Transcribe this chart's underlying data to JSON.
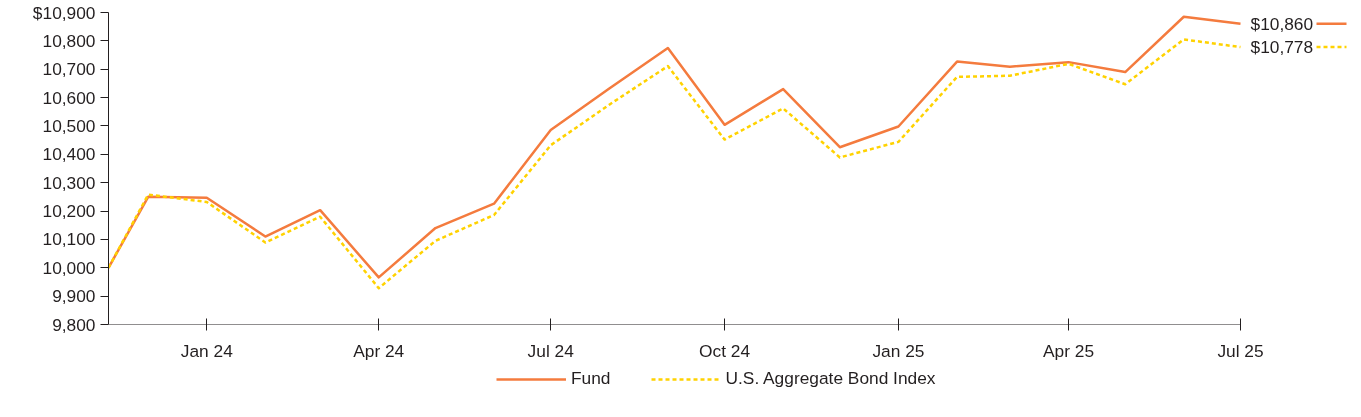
{
  "chart_data": {
    "type": "line",
    "x": [
      "2023-11-10",
      "2023-12-01",
      "2024-01-01",
      "2024-02-01",
      "2024-03-01",
      "2024-04-01",
      "2024-05-01",
      "2024-06-01",
      "2024-07-01",
      "2024-08-01",
      "2024-09-01",
      "2024-10-01",
      "2024-11-01",
      "2024-12-01",
      "2025-01-01",
      "2025-02-01",
      "2025-03-01",
      "2025-04-01",
      "2025-05-01",
      "2025-06-01",
      "2025-07-01"
    ],
    "series": [
      {
        "name": "Fund",
        "color": "#f47b3e",
        "line_style": "solid",
        "values": [
          10000,
          10250,
          10247,
          10110,
          10203,
          9966,
          10140,
          10226,
          10486,
          10632,
          10775,
          10504,
          10630,
          10425,
          10498,
          10727,
          10709,
          10725,
          10690,
          10885,
          10860
        ]
      },
      {
        "name": "U.S. Aggregate Bond Index",
        "color": "#ffd200",
        "line_style": "dashed",
        "values": [
          10000,
          10258,
          10232,
          10089,
          10180,
          9928,
          10095,
          10186,
          10432,
          10575,
          10711,
          10452,
          10562,
          10389,
          10444,
          10673,
          10677,
          10719,
          10647,
          10805,
          10778
        ]
      }
    ],
    "xlim": [
      "2023-11-10",
      "2025-07-01"
    ],
    "xticks": [
      {
        "value": "2024-01-01",
        "label": "Jan 24"
      },
      {
        "value": "2024-04-01",
        "label": "Apr 24"
      },
      {
        "value": "2024-07-01",
        "label": "Jul 24"
      },
      {
        "value": "2024-10-01",
        "label": "Oct 24"
      },
      {
        "value": "2025-01-01",
        "label": "Jan 25"
      },
      {
        "value": "2025-04-01",
        "label": "Apr 25"
      },
      {
        "value": "2025-07-01",
        "label": "Jul 25"
      }
    ],
    "ylim": [
      9800,
      10900
    ],
    "yticks": [
      {
        "value": 10900,
        "label": "$10,900"
      },
      {
        "value": 10800,
        "label": "10,800"
      },
      {
        "value": 10700,
        "label": "10,700"
      },
      {
        "value": 10600,
        "label": "10,600"
      },
      {
        "value": 10500,
        "label": "10,500"
      },
      {
        "value": 10400,
        "label": "10,400"
      },
      {
        "value": 10300,
        "label": "10,300"
      },
      {
        "value": 10200,
        "label": "10,200"
      },
      {
        "value": 10100,
        "label": "10,100"
      },
      {
        "value": 10000,
        "label": "10,000"
      },
      {
        "value": 9900,
        "label": "9,900"
      },
      {
        "value": 9800,
        "label": "9,800"
      }
    ],
    "annotations": [
      {
        "text": "$10,860",
        "x": "2025-07-01",
        "y": 10860
      },
      {
        "text": "$10,778",
        "x": "2025-07-01",
        "y": 10778
      }
    ],
    "grid": false,
    "legend": "bottom",
    "marker": "none"
  }
}
